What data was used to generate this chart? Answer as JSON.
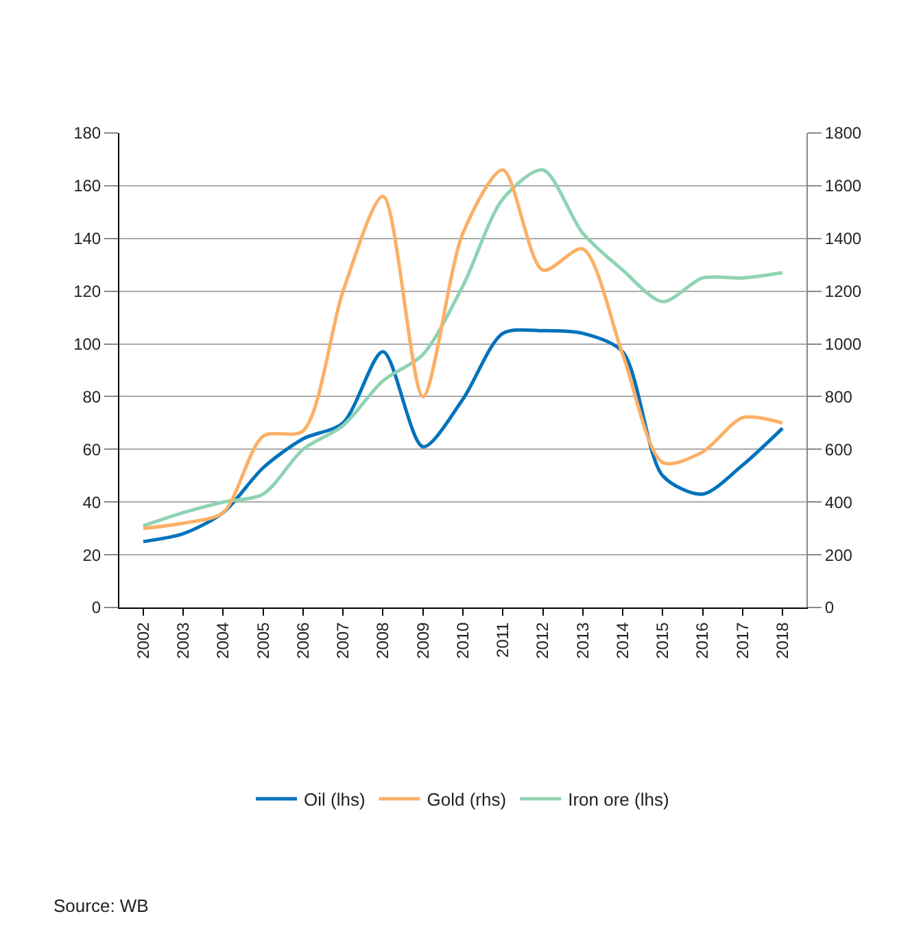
{
  "chart_data": {
    "type": "line",
    "categories": [
      "2002",
      "2003",
      "2004",
      "2005",
      "2006",
      "2007",
      "2008",
      "2009",
      "2010",
      "2011",
      "2012",
      "2013",
      "2014",
      "2015",
      "2016",
      "2017",
      "2018"
    ],
    "series": [
      {
        "name": "Oil (lhs)",
        "color": "#0072bc",
        "values": [
          25,
          28,
          36,
          53,
          64,
          70,
          97,
          61,
          79,
          104,
          105,
          104,
          97,
          50,
          43,
          54,
          68
        ]
      },
      {
        "name": "Gold (rhs)",
        "color": "#fbb066",
        "axis": "y2",
        "values": [
          300,
          320,
          360,
          650,
          670,
          1200,
          1560,
          800,
          1420,
          1660,
          1280,
          1360,
          960,
          550,
          590,
          720,
          700
        ]
      },
      {
        "name": "Iron ore (lhs)",
        "color": "#8fd3b3",
        "values": [
          31,
          36,
          40,
          43,
          60,
          69,
          86,
          96,
          122,
          155,
          166,
          142,
          128,
          116,
          125,
          125,
          127
        ]
      }
    ],
    "ylim": [
      0,
      180
    ],
    "yticks": [
      0,
      20,
      40,
      60,
      80,
      100,
      120,
      140,
      160,
      180
    ],
    "y2lim": [
      0,
      1800
    ],
    "y2ticks": [
      0,
      200,
      400,
      600,
      800,
      1000,
      1200,
      1400,
      1600,
      1800
    ],
    "grid": "y",
    "legend": "bottom",
    "marker": "none",
    "line_style": "solid",
    "annotations": [
      "Source: WB"
    ]
  }
}
